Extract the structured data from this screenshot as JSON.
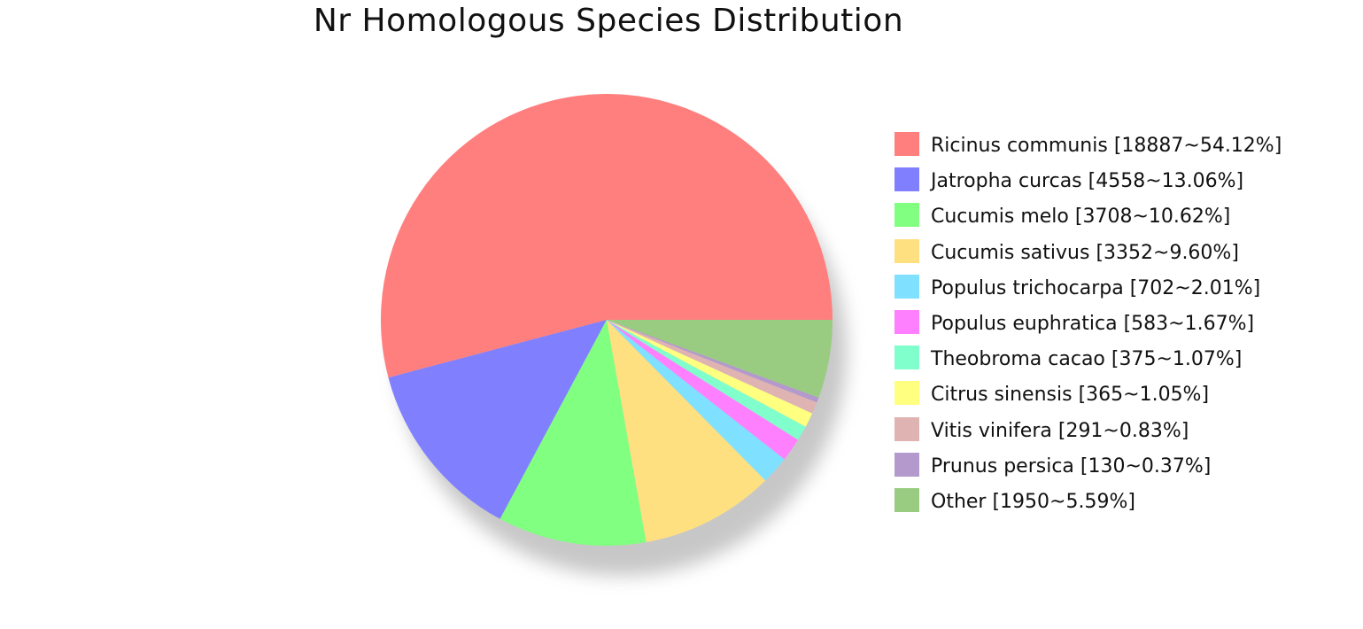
{
  "chart_data": {
    "type": "pie",
    "title": "Nr Homologous Species Distribution",
    "legend_position": "right",
    "start_angle_deg": 0,
    "direction": "counterclockwise",
    "shadow": true,
    "slices": [
      {
        "name": "Ricinus communis",
        "value": 18887,
        "percent": 54.12,
        "label": "Ricinus communis [18887~54.12%]",
        "color": "#FF7F7F"
      },
      {
        "name": "Jatropha curcas",
        "value": 4558,
        "percent": 13.06,
        "label": "Jatropha curcas [4558~13.06%]",
        "color": "#8080FF"
      },
      {
        "name": "Cucumis melo",
        "value": 3708,
        "percent": 10.62,
        "label": "Cucumis melo [3708~10.62%]",
        "color": "#80FF80"
      },
      {
        "name": "Cucumis sativus",
        "value": 3352,
        "percent": 9.6,
        "label": "Cucumis sativus [3352~9.60%]",
        "color": "#FFE080"
      },
      {
        "name": "Populus trichocarpa",
        "value": 702,
        "percent": 2.01,
        "label": "Populus trichocarpa [702~2.01%]",
        "color": "#80E0FF"
      },
      {
        "name": "Populus euphratica",
        "value": 583,
        "percent": 1.67,
        "label": "Populus euphratica [583~1.67%]",
        "color": "#FF80FF"
      },
      {
        "name": "Theobroma cacao",
        "value": 375,
        "percent": 1.07,
        "label": "Theobroma cacao [375~1.07%]",
        "color": "#80FFCC"
      },
      {
        "name": "Citrus sinensis",
        "value": 365,
        "percent": 1.05,
        "label": "Citrus sinensis [365~1.05%]",
        "color": "#FFFF80"
      },
      {
        "name": "Vitis vinifera",
        "value": 291,
        "percent": 0.83,
        "label": "Vitis vinifera [291~0.83%]",
        "color": "#E0B3B3"
      },
      {
        "name": "Prunus persica",
        "value": 130,
        "percent": 0.37,
        "label": "Prunus persica [130~0.37%]",
        "color": "#B399CC"
      },
      {
        "name": "Other",
        "value": 1950,
        "percent": 5.59,
        "label": "Other [1950~5.59%]",
        "color": "#99CC80"
      }
    ]
  }
}
